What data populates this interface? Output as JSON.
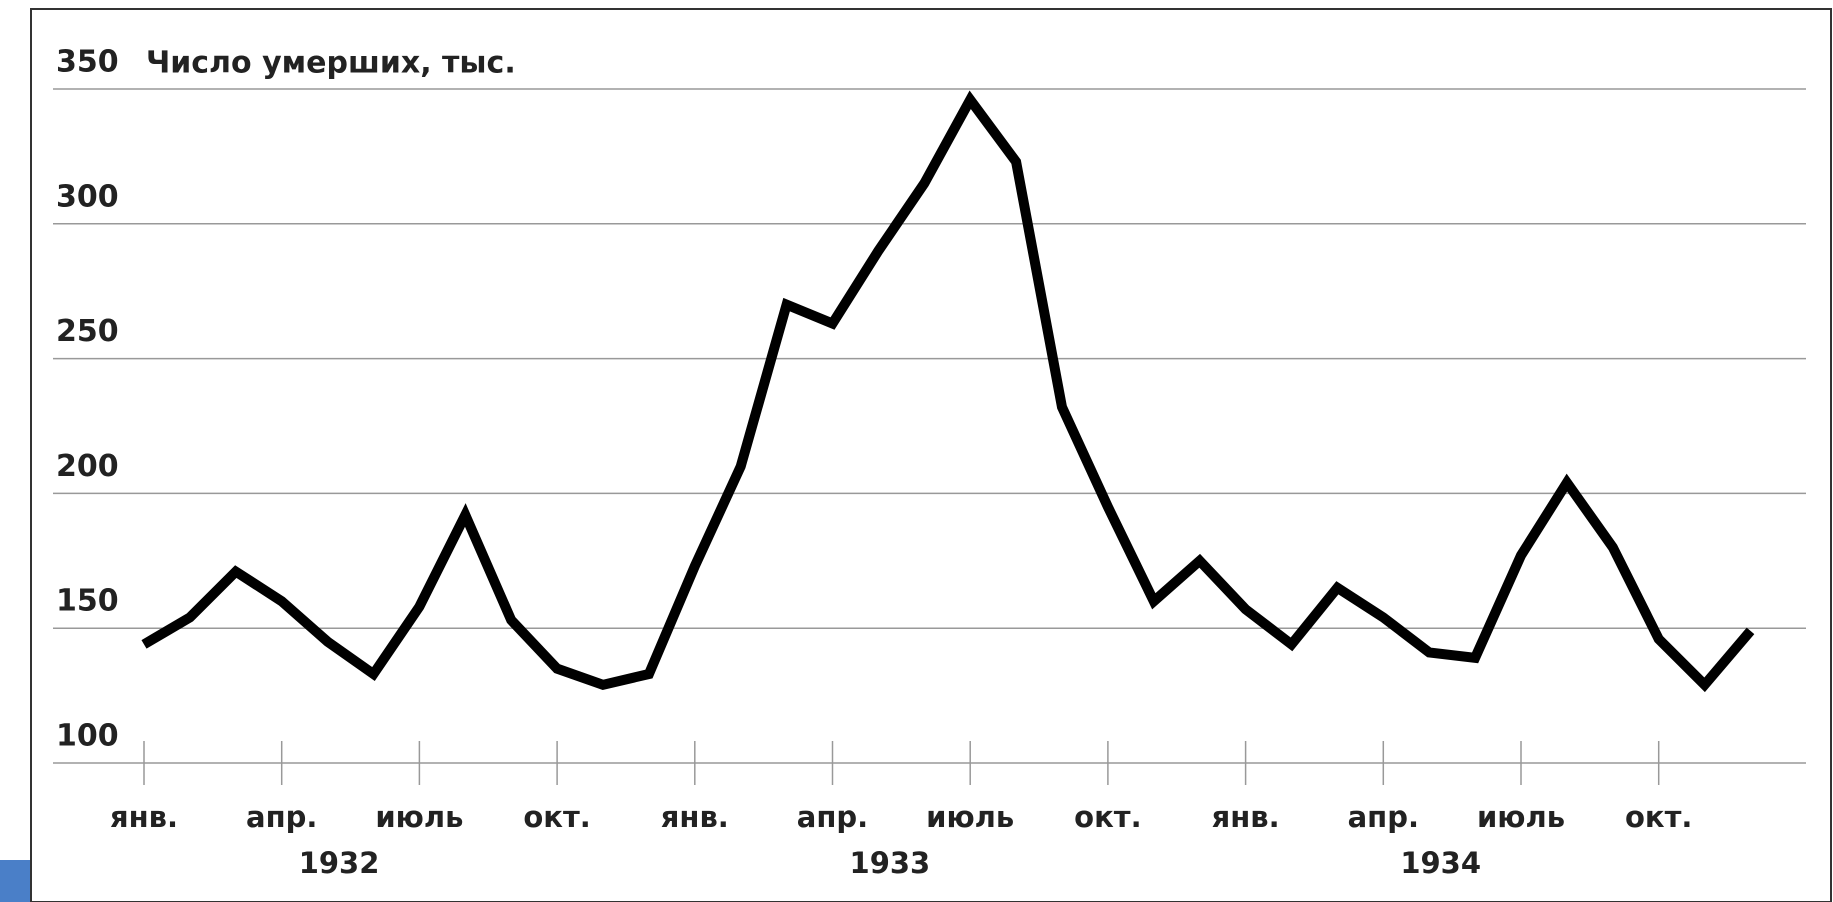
{
  "chart_data": {
    "type": "line",
    "y_axis_label": "Число умерших, тыс.",
    "categories": [
      "янв.",
      null,
      null,
      "апр.",
      null,
      null,
      "июль",
      null,
      null,
      "окт.",
      null,
      null,
      "янв.",
      null,
      null,
      "апр.",
      null,
      null,
      "июль",
      null,
      null,
      "окт.",
      null,
      null,
      "янв.",
      null,
      null,
      "апр.",
      null,
      null,
      "июль",
      null,
      null,
      "окт.",
      null,
      null
    ],
    "year_labels": [
      "1932",
      "1933",
      "1934"
    ],
    "series": [
      {
        "color": "#000000",
        "values": [
          144,
          154,
          171,
          160,
          145,
          133,
          158,
          192,
          153,
          135,
          129,
          133,
          173,
          210,
          270,
          263,
          290,
          315,
          346,
          323,
          232,
          195,
          160,
          175,
          157,
          144,
          165,
          154,
          141,
          139,
          177,
          204,
          180,
          146,
          129,
          149
        ]
      }
    ],
    "ylim": [
      100,
      350
    ],
    "yticks": [
      100,
      150,
      200,
      250,
      300,
      350
    ],
    "grid": true
  }
}
